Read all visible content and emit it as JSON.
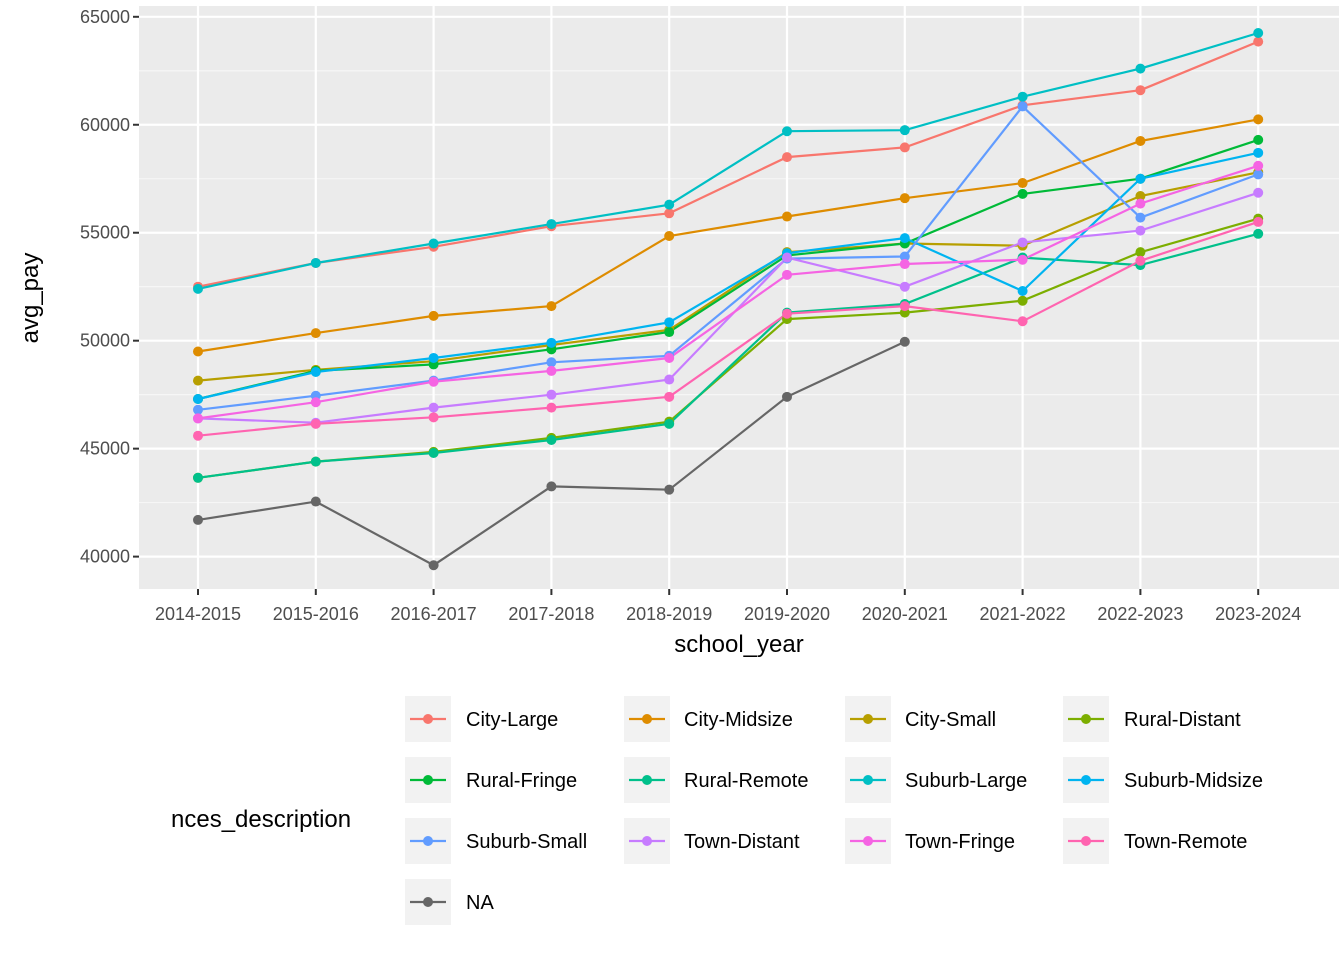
{
  "chart_data": {
    "type": "line",
    "xlabel": "school_year",
    "ylabel": "avg_pay",
    "categories": [
      "2014-2015",
      "2015-2016",
      "2016-2017",
      "2017-2018",
      "2018-2019",
      "2019-2020",
      "2020-2021",
      "2021-2022",
      "2022-2023",
      "2023-2024"
    ],
    "ylim": [
      38500,
      65500
    ],
    "y_ticks": [
      40000,
      45000,
      50000,
      55000,
      60000,
      65000
    ],
    "y_tick_labels": [
      "40000",
      "45000",
      "50000",
      "55000",
      "60000",
      "65000"
    ],
    "grid": true,
    "legend": {
      "title": "nces_description",
      "position": "bottom"
    },
    "series": [
      {
        "name": "City-Large",
        "color": "#F8766D",
        "values": [
          52500,
          53600,
          54350,
          55300,
          55900,
          58500,
          58950,
          60900,
          61600,
          63850
        ]
      },
      {
        "name": "City-Midsize",
        "color": "#DE8C00",
        "values": [
          49500,
          50350,
          51150,
          51600,
          54850,
          55750,
          56600,
          57300,
          59250,
          60250
        ]
      },
      {
        "name": "City-Small",
        "color": "#B79F00",
        "values": [
          48150,
          48650,
          49050,
          49800,
          50500,
          54100,
          54500,
          54400,
          56700,
          57800
        ]
      },
      {
        "name": "Rural-Distant",
        "color": "#7CAE00",
        "values": [
          43650,
          44400,
          44850,
          45500,
          46250,
          51000,
          51300,
          51850,
          54100,
          55650
        ]
      },
      {
        "name": "Rural-Fringe",
        "color": "#00BA38",
        "values": [
          47300,
          48600,
          48900,
          49600,
          50400,
          53950,
          54500,
          56800,
          57500,
          59300
        ]
      },
      {
        "name": "Rural-Remote",
        "color": "#00C08B",
        "values": [
          43650,
          44400,
          44800,
          45400,
          46150,
          51300,
          51700,
          53850,
          53500,
          54950
        ]
      },
      {
        "name": "Suburb-Large",
        "color": "#00BFC4",
        "values": [
          52400,
          53600,
          54500,
          55400,
          56300,
          59700,
          59750,
          61300,
          62600,
          64250
        ]
      },
      {
        "name": "Suburb-Midsize",
        "color": "#00B4F0",
        "values": [
          47300,
          48550,
          49200,
          49900,
          50850,
          54050,
          54750,
          52300,
          57500,
          58700
        ]
      },
      {
        "name": "Suburb-Small",
        "color": "#619CFF",
        "values": [
          46800,
          47450,
          48150,
          49000,
          49300,
          53800,
          53900,
          60850,
          55700,
          57700
        ]
      },
      {
        "name": "Town-Distant",
        "color": "#C77CFF",
        "values": [
          46400,
          46200,
          46900,
          47500,
          48200,
          53850,
          52500,
          54550,
          55100,
          56850
        ]
      },
      {
        "name": "Town-Fringe",
        "color": "#F564E3",
        "values": [
          46400,
          47150,
          48100,
          48600,
          49200,
          53050,
          53550,
          53750,
          56350,
          58100
        ]
      },
      {
        "name": "Town-Remote",
        "color": "#FF64B0",
        "values": [
          45600,
          46150,
          46450,
          46900,
          47400,
          51250,
          51600,
          50900,
          53700,
          55500
        ]
      },
      {
        "name": "NA",
        "color": "#666666",
        "values": [
          41700,
          42550,
          39600,
          43250,
          43100,
          47400,
          49950,
          null,
          null,
          null
        ]
      }
    ]
  }
}
